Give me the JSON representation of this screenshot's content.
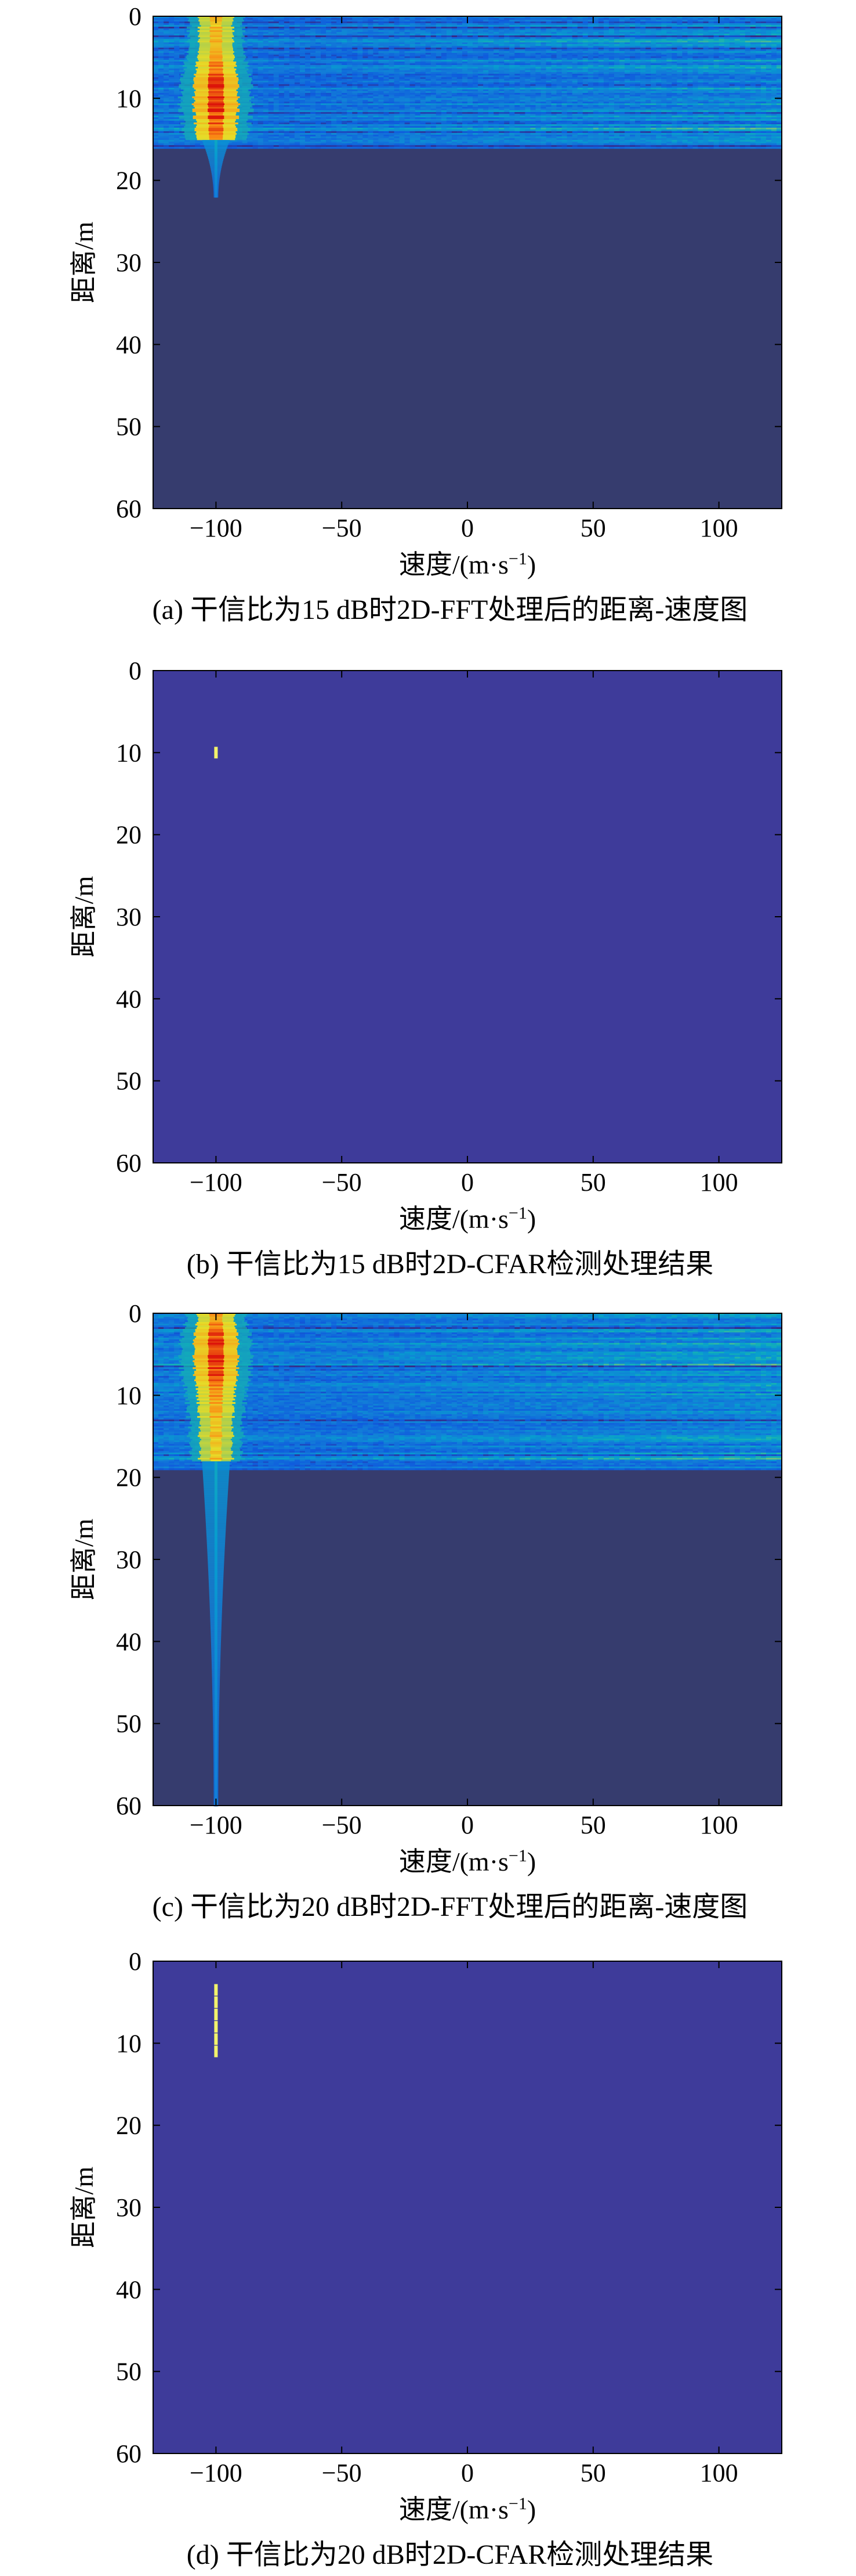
{
  "chart_data": [
    {
      "type": "heatmap",
      "caption": "(a) 干信比为15 dB时2D-FFT处理后的距离-速度图",
      "xlabel": "速度/(m·s",
      "xlabel_sup": "−1",
      "xlabel_end": ")",
      "ylabel": "距离/m",
      "xlim": [
        -125,
        125
      ],
      "ylim": [
        0,
        60
      ],
      "y_reversed": true,
      "xticks": [
        -100,
        -50,
        0,
        50,
        100
      ],
      "xtick_labels": [
        "−100",
        "−50",
        "0",
        "50",
        "100"
      ],
      "yticks": [
        0,
        10,
        20,
        30,
        40,
        50,
        60
      ],
      "ytick_labels": [
        "0",
        "10",
        "20",
        "30",
        "40",
        "50",
        "60"
      ],
      "colormap": "parula",
      "background_color": "#363c6e",
      "interference_band_range_m": [
        0,
        15
      ],
      "target": {
        "velocity": -100,
        "range": 10,
        "spread_range_m": [
          0,
          22
        ]
      },
      "noise_floor_color": "#363c6e"
    },
    {
      "type": "heatmap",
      "caption": "(b) 干信比为15 dB时2D-CFAR检测处理结果",
      "xlabel": "速度/(m·s",
      "xlabel_sup": "−1",
      "xlabel_end": ")",
      "ylabel": "距离/m",
      "xlim": [
        -125,
        125
      ],
      "ylim": [
        0,
        60
      ],
      "y_reversed": true,
      "xticks": [
        -100,
        -50,
        0,
        50,
        100
      ],
      "xtick_labels": [
        "−100",
        "−50",
        "0",
        "50",
        "100"
      ],
      "yticks": [
        0,
        10,
        20,
        30,
        40,
        50,
        60
      ],
      "ytick_labels": [
        "0",
        "10",
        "20",
        "30",
        "40",
        "50",
        "60"
      ],
      "background_color": "#3e3b9a",
      "detections": [
        {
          "velocity": -100,
          "range": 10
        }
      ],
      "detection_color": "#f2f26b"
    },
    {
      "type": "heatmap",
      "caption": "(c) 干信比为20 dB时2D-FFT处理后的距离-速度图",
      "xlabel": "速度/(m·s",
      "xlabel_sup": "−1",
      "xlabel_end": ")",
      "ylabel": "距离/m",
      "xlim": [
        -125,
        125
      ],
      "ylim": [
        0,
        60
      ],
      "y_reversed": true,
      "xticks": [
        -100,
        -50,
        0,
        50,
        100
      ],
      "xtick_labels": [
        "−100",
        "−50",
        "0",
        "50",
        "100"
      ],
      "yticks": [
        0,
        10,
        20,
        30,
        40,
        50,
        60
      ],
      "ytick_labels": [
        "0",
        "10",
        "20",
        "30",
        "40",
        "50",
        "60"
      ],
      "colormap": "parula",
      "background_color": "#363c6e",
      "interference_band_range_m": [
        0,
        18
      ],
      "target": {
        "velocity": -100,
        "range": 5,
        "spread_range_m": [
          0,
          60
        ]
      },
      "noise_floor_color": "#363c6e"
    },
    {
      "type": "heatmap",
      "caption": "(d) 干信比为20 dB时2D-CFAR检测处理结果",
      "xlabel": "速度/(m·s",
      "xlabel_sup": "−1",
      "xlabel_end": ")",
      "ylabel": "距离/m",
      "xlim": [
        -125,
        125
      ],
      "ylim": [
        0,
        60
      ],
      "y_reversed": true,
      "xticks": [
        -100,
        -50,
        0,
        50,
        100
      ],
      "xtick_labels": [
        "−100",
        "−50",
        "0",
        "50",
        "100"
      ],
      "yticks": [
        0,
        10,
        20,
        30,
        40,
        50,
        60
      ],
      "ytick_labels": [
        "0",
        "10",
        "20",
        "30",
        "40",
        "50",
        "60"
      ],
      "background_color": "#3e3b9a",
      "detections": [
        {
          "velocity": -100,
          "range": 3.5
        },
        {
          "velocity": -100,
          "range": 5
        },
        {
          "velocity": -100,
          "range": 6.5
        },
        {
          "velocity": -100,
          "range": 8
        },
        {
          "velocity": -100,
          "range": 9.5
        },
        {
          "velocity": -100,
          "range": 11
        }
      ],
      "detection_color": "#f2f26b"
    }
  ]
}
